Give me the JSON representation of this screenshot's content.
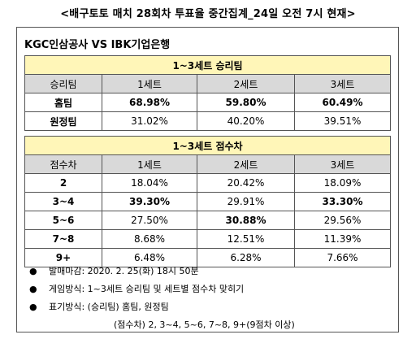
{
  "title": "<배구토토 매치 28회차 투표율 중간집계_24일 오전 7시 현재>",
  "match": "KGC인삼공사  VS  IBK기업은행",
  "win_section": {
    "heading": "1~3세트 승리팀",
    "header": [
      "승리팀",
      "1세트",
      "2세트",
      "3세트"
    ],
    "rows": [
      {
        "label": "홈팀",
        "values": [
          "68.98%",
          "59.80%",
          "60.49%"
        ],
        "bold": [
          true,
          true,
          true
        ]
      },
      {
        "label": "원정팀",
        "values": [
          "31.02%",
          "40.20%",
          "39.51%"
        ],
        "bold": [
          false,
          false,
          false
        ]
      }
    ]
  },
  "diff_section": {
    "heading": "1~3세트 점수차",
    "header": [
      "점수차",
      "1세트",
      "2세트",
      "3세트"
    ],
    "rows": [
      {
        "label": "2",
        "values": [
          "18.04%",
          "20.42%",
          "18.09%"
        ],
        "bold": [
          false,
          false,
          false
        ]
      },
      {
        "label": "3~4",
        "values": [
          "39.30%",
          "29.91%",
          "33.30%"
        ],
        "bold": [
          true,
          false,
          true
        ]
      },
      {
        "label": "5~6",
        "values": [
          "27.50%",
          "30.88%",
          "29.56%"
        ],
        "bold": [
          false,
          true,
          false
        ]
      },
      {
        "label": "7~8",
        "values": [
          "8.68%",
          "12.51%",
          "11.39%"
        ],
        "bold": [
          false,
          false,
          false
        ]
      },
      {
        "label": "9+",
        "values": [
          "6.48%",
          "6.28%",
          "7.66%"
        ],
        "bold": [
          false,
          false,
          false
        ]
      }
    ]
  },
  "notes": [
    {
      "bullet": "●",
      "text": "발매마감: 2020. 2. 25(화) 18시 50분"
    },
    {
      "bullet": "●",
      "text": "게임방식: 1~3세트 승리팀 및 세트별 점수차 맞히기"
    },
    {
      "bullet": "●",
      "text": "표기방식: (승리팀) 홈팀, 원정팀"
    },
    {
      "bullet": "",
      "text": "(점수차) 2, 3~4, 5~6, 7~8, 9+(9점차 이상)"
    }
  ]
}
